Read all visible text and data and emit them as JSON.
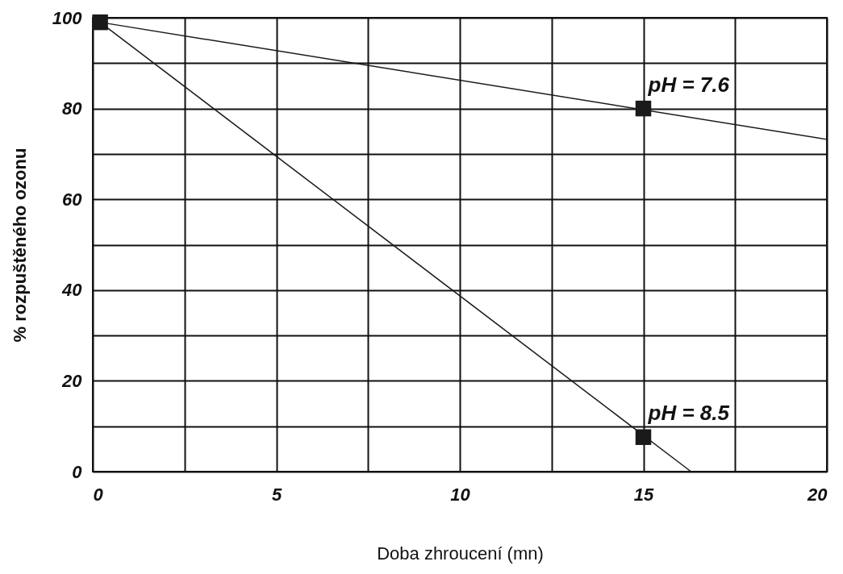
{
  "chart_data": {
    "type": "line",
    "xlabel": "Doba zhroucení (mn)",
    "ylabel": "% rozpuštěného ozonu",
    "xlim": [
      0,
      20
    ],
    "ylim": [
      0,
      100
    ],
    "xticks": [
      0,
      {
        "value": 2.5,
        "label": null
      },
      5,
      {
        "value": 7.5,
        "label": null
      },
      10,
      {
        "value": 12.5,
        "label": null
      },
      15,
      {
        "value": 17.5,
        "label": null
      },
      20
    ],
    "yticks": [
      0,
      {
        "value": 10,
        "label": null
      },
      20,
      {
        "value": 30,
        "label": null
      },
      40,
      {
        "value": 50,
        "label": null
      },
      60,
      {
        "value": 70,
        "label": null
      },
      80,
      {
        "value": 90,
        "label": null
      },
      100
    ],
    "grid": true,
    "series": [
      {
        "color": "#1a1a1a",
        "marker": "none",
        "x": [
          0.2,
          20
        ],
        "values": [
          99,
          73.2
        ]
      },
      {
        "color": "#1a1a1a",
        "marker": "none",
        "x": [
          0.2,
          16.3
        ],
        "values": [
          99,
          0
        ]
      },
      {
        "type": "scatter",
        "color": "#1a1a1a",
        "marker": "square",
        "x": [
          0.2,
          15,
          15
        ],
        "values": [
          99,
          80,
          7.6
        ]
      }
    ],
    "annotations": [
      {
        "text": "pH = 7.6",
        "x": 15,
        "y": 80
      },
      {
        "text": "pH = 8.5",
        "x": 15,
        "y": 7.6
      }
    ]
  }
}
